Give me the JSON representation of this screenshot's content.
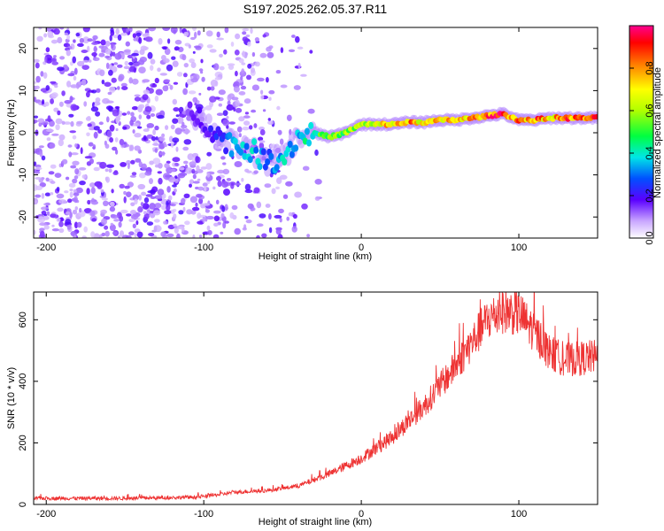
{
  "title": "S197.2025.262.05.37.R11",
  "chart_data": [
    {
      "type": "heatmap",
      "xlabel": "Height of straight line (km)",
      "ylabel": "Frequency (Hz)",
      "xlim": [
        -208,
        150
      ],
      "ylim": [
        -25,
        25
      ],
      "xticks": [
        -200,
        -100,
        0,
        100
      ],
      "yticks": [
        -20,
        -10,
        0,
        10,
        20
      ],
      "colorbar": {
        "label": "Normalized spectral amplitude",
        "range": [
          0,
          1
        ],
        "ticks": [
          "0.0",
          "0.2",
          "0.4",
          "0.6",
          "0.8"
        ],
        "tick_values": [
          0.0,
          0.2,
          0.4,
          0.6,
          0.8
        ]
      },
      "ridge": {
        "x": [
          -110,
          -100,
          -90,
          -80,
          -70,
          -60,
          -50,
          -40,
          -30,
          -20,
          -10,
          0,
          10,
          20,
          30,
          40,
          50,
          60,
          70,
          80,
          90,
          100,
          110,
          120,
          130,
          140,
          150
        ],
        "y": [
          5,
          3,
          -1,
          -3,
          -4,
          -7,
          -6,
          -1,
          0,
          -1,
          0,
          2,
          2,
          2,
          2.5,
          2.5,
          3,
          3,
          3.5,
          4,
          4.5,
          3,
          3,
          3.5,
          3.5,
          3.5,
          3.5
        ],
        "amplitude": [
          0.15,
          0.18,
          0.25,
          0.35,
          0.4,
          0.3,
          0.4,
          0.35,
          0.5,
          0.55,
          0.6,
          0.65,
          0.7,
          0.8,
          0.85,
          0.7,
          0.8,
          0.85,
          0.8,
          0.9,
          0.95,
          0.85,
          0.9,
          0.8,
          0.9,
          0.85,
          0.9
        ]
      }
    },
    {
      "type": "line",
      "xlabel": "Height of straight line (km)",
      "ylabel": "SNR (10 * v/v)",
      "xlim": [
        -208,
        150
      ],
      "ylim": [
        0,
        690
      ],
      "xticks": [
        -200,
        -100,
        0,
        100
      ],
      "yticks": [
        0,
        200,
        400,
        600
      ],
      "color": "#ee3333",
      "envelope": {
        "x": [
          -208,
          -150,
          -120,
          -100,
          -80,
          -60,
          -40,
          -20,
          0,
          20,
          40,
          60,
          80,
          90,
          100,
          110,
          120,
          130,
          150
        ],
        "y": [
          20,
          20,
          22,
          25,
          40,
          45,
          60,
          100,
          150,
          220,
          320,
          450,
          600,
          630,
          620,
          560,
          490,
          470,
          480
        ]
      }
    }
  ]
}
